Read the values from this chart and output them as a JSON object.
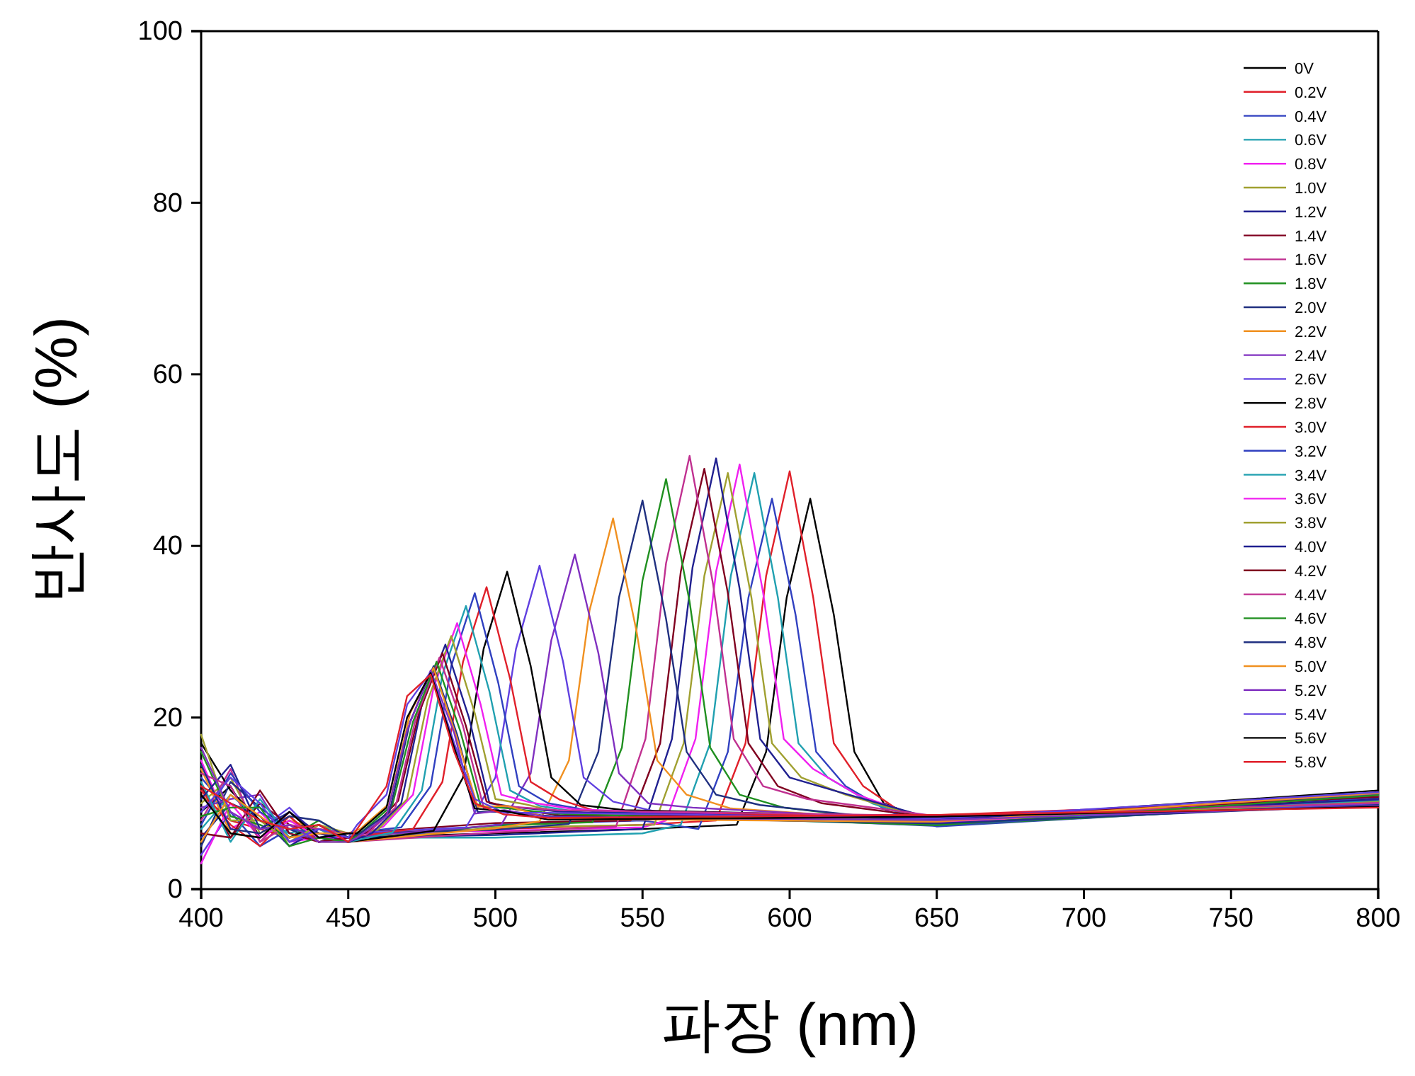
{
  "chart_data": {
    "type": "line",
    "xlabel": "파장 (nm)",
    "ylabel": "반사도 (%)",
    "xlim": [
      400,
      800
    ],
    "ylim": [
      0,
      100
    ],
    "xticks": [
      400,
      450,
      500,
      550,
      600,
      650,
      700,
      750,
      800
    ],
    "yticks": [
      0,
      20,
      40,
      60,
      80,
      100
    ],
    "grid": false,
    "legend": "top right",
    "marker": "none",
    "line_style": "solid",
    "series": [
      {
        "name": "0V",
        "color": "#000000",
        "x": [
          400,
          410,
          420,
          430,
          440,
          450,
          500,
          550,
          582,
          592,
          599,
          607,
          615,
          622,
          632,
          647,
          800
        ],
        "values": [
          9,
          12,
          6,
          8,
          6.5,
          6,
          6.5,
          7,
          7.5,
          16,
          34,
          45.5,
          32,
          16,
          10,
          8,
          11.5
        ]
      },
      {
        "name": "0.2V",
        "color": "#e0202a",
        "x": [
          400,
          410,
          420,
          430,
          440,
          450,
          500,
          550,
          575,
          585,
          592,
          600,
          608,
          615,
          625,
          640,
          800
        ],
        "values": [
          11,
          8,
          7,
          6,
          7,
          6.5,
          7,
          7.5,
          8,
          17,
          36.5,
          48.7,
          34,
          17,
          12,
          8.5,
          10.5
        ]
      },
      {
        "name": "0.4V",
        "color": "#3040c0",
        "x": [
          400,
          410,
          420,
          430,
          440,
          450,
          500,
          550,
          569,
          579,
          586,
          594,
          602,
          609,
          619,
          634,
          650,
          800
        ],
        "values": [
          13,
          9,
          5,
          7,
          6,
          5.5,
          7.5,
          8,
          7,
          16,
          34,
          45.5,
          32,
          16,
          12,
          9,
          7.3,
          10.2
        ]
      },
      {
        "name": "0.6V",
        "color": "#20a0b0",
        "x": [
          400,
          410,
          420,
          430,
          440,
          450,
          500,
          550,
          563,
          573,
          580,
          588,
          596,
          603,
          613,
          628,
          650,
          800
        ],
        "values": [
          7,
          11,
          8,
          6.5,
          7.5,
          6,
          6,
          6.5,
          7.5,
          17,
          36.5,
          48.5,
          34,
          17,
          13,
          10,
          7.5,
          10.8
        ]
      },
      {
        "name": "0.8V",
        "color": "#f020f0",
        "x": [
          400,
          410,
          420,
          430,
          440,
          450,
          500,
          550,
          558,
          568,
          575,
          583,
          591,
          598,
          608,
          623,
          650,
          800
        ],
        "values": [
          15,
          7,
          9,
          5.5,
          6,
          6.5,
          6.8,
          7.2,
          8,
          17.5,
          37,
          49.5,
          34.5,
          17.5,
          14,
          11,
          7.7,
          10
        ]
      },
      {
        "name": "1.0V",
        "color": "#a0a030",
        "x": [
          400,
          410,
          420,
          430,
          440,
          450,
          500,
          554,
          564,
          571,
          579,
          587,
          594,
          604,
          619,
          650,
          800
        ],
        "values": [
          10,
          13,
          6.5,
          8.5,
          5.5,
          5.5,
          7.2,
          7.5,
          17,
          36.5,
          48.5,
          34,
          17,
          13,
          11,
          7.9,
          10.6
        ]
      },
      {
        "name": "1.2V",
        "color": "#202090",
        "x": [
          400,
          410,
          420,
          430,
          440,
          450,
          500,
          550,
          560,
          567,
          575,
          583,
          590,
          600,
          615,
          650,
          800
        ],
        "values": [
          6,
          10,
          8.5,
          5,
          7,
          6,
          6.3,
          7,
          17.5,
          37.5,
          50.2,
          35,
          17.5,
          13,
          11.5,
          8.1,
          11
        ]
      },
      {
        "name": "1.4V",
        "color": "#800020",
        "x": [
          400,
          410,
          420,
          430,
          440,
          450,
          500,
          546,
          556,
          563,
          571,
          579,
          586,
          596,
          611,
          650,
          800
        ],
        "values": [
          12,
          6,
          10,
          7.5,
          6.5,
          6.5,
          7.7,
          8,
          17,
          37,
          49,
          34.5,
          17,
          12,
          10,
          8.3,
          10.3
        ]
      },
      {
        "name": "1.6V",
        "color": "#c03090",
        "x": [
          400,
          410,
          420,
          430,
          440,
          450,
          500,
          541,
          551,
          558,
          566,
          574,
          581,
          591,
          606,
          650,
          800
        ],
        "values": [
          8,
          14,
          5.5,
          9,
          6,
          5.5,
          6.6,
          7.3,
          17.5,
          38,
          50.5,
          35.5,
          17.5,
          12,
          10.5,
          8.5,
          10.7
        ]
      },
      {
        "name": "1.8V",
        "color": "#209020",
        "x": [
          400,
          410,
          420,
          430,
          440,
          450,
          500,
          533,
          543,
          550,
          558,
          566,
          573,
          583,
          598,
          650,
          800
        ],
        "values": [
          16,
          8.5,
          7.5,
          6,
          8,
          6,
          7.4,
          7.8,
          16.5,
          36,
          47.8,
          33.5,
          16.5,
          11,
          9.5,
          7.4,
          10.1
        ]
      },
      {
        "name": "2.0V",
        "color": "#203080",
        "x": [
          400,
          410,
          420,
          430,
          440,
          450,
          500,
          525,
          535,
          542,
          550,
          558,
          565,
          575,
          590,
          650,
          800
        ],
        "values": [
          5,
          12.5,
          9.5,
          7,
          5.5,
          6.5,
          6.9,
          7.6,
          16,
          34,
          45.3,
          31.5,
          16,
          11,
          9.8,
          7.6,
          10.9
        ]
      },
      {
        "name": "2.2V",
        "color": "#f09020",
        "x": [
          400,
          410,
          420,
          430,
          440,
          450,
          500,
          515,
          525,
          532,
          540,
          548,
          555,
          565,
          580,
          650,
          800
        ],
        "values": [
          14,
          6.5,
          6,
          8,
          7,
          5.5,
          7.1,
          7.9,
          15,
          32.5,
          43.2,
          30,
          15,
          11,
          9.4,
          7.8,
          10.4
        ]
      },
      {
        "name": "2.4V",
        "color": "#8030c0",
        "x": [
          400,
          410,
          420,
          430,
          440,
          450,
          502,
          512,
          519,
          527,
          535,
          542,
          552,
          567,
          650,
          800
        ],
        "values": [
          9.5,
          10.5,
          11,
          5.5,
          6.5,
          6,
          7.5,
          13.5,
          29,
          39,
          27.5,
          13.5,
          10,
          9.5,
          8,
          11.1
        ]
      },
      {
        "name": "2.6V",
        "color": "#6040e0",
        "x": [
          400,
          410,
          420,
          430,
          440,
          450,
          490,
          500,
          507,
          515,
          523,
          530,
          540,
          555,
          650,
          800
        ],
        "values": [
          4,
          9,
          7,
          9.5,
          6,
          6.5,
          7.2,
          13,
          28,
          37.7,
          26.5,
          13,
          10.2,
          9,
          8.2,
          9.9
        ]
      },
      {
        "name": "2.8V",
        "color": "#000000",
        "x": [
          400,
          410,
          420,
          430,
          440,
          450,
          479,
          489,
          496,
          504,
          512,
          519,
          529,
          544,
          650,
          800
        ],
        "values": [
          17,
          11.5,
          8,
          6,
          7.5,
          5.5,
          6.8,
          13,
          28,
          37,
          26,
          13,
          9.8,
          9.2,
          8.4,
          10.55
        ]
      },
      {
        "name": "3.0V",
        "color": "#e0202a",
        "x": [
          400,
          410,
          420,
          430,
          440,
          450,
          472,
          482,
          489,
          497,
          505,
          512,
          522,
          537,
          650,
          800
        ],
        "values": [
          11.5,
          7.5,
          5,
          8.5,
          5.5,
          6,
          7,
          12.5,
          26.5,
          35.2,
          24.5,
          12.5,
          10.4,
          8.8,
          8.6,
          10.25
        ]
      },
      {
        "name": "3.2V",
        "color": "#3040c0",
        "x": [
          400,
          410,
          420,
          430,
          440,
          450,
          468,
          478,
          485,
          493,
          501,
          508,
          518,
          533,
          650,
          800
        ],
        "values": [
          7.5,
          13.5,
          9,
          7,
          6.5,
          6.5,
          7.2,
          12,
          26,
          34.5,
          24,
          12,
          10,
          9.1,
          7.35,
          10.65
        ]
      },
      {
        "name": "3.4V",
        "color": "#20a0b0",
        "x": [
          400,
          410,
          420,
          430,
          440,
          450,
          465,
          475,
          482,
          490,
          498,
          505,
          515,
          530,
          650,
          800
        ],
        "values": [
          12.5,
          5.5,
          10.5,
          6,
          7,
          5.5,
          6.6,
          11.5,
          25,
          33,
          23,
          11.5,
          9.7,
          8.9,
          7.55,
          10.35
        ]
      },
      {
        "name": "3.6V",
        "color": "#f020f0",
        "x": [
          400,
          410,
          420,
          430,
          440,
          450,
          462,
          472,
          479,
          487,
          495,
          502,
          512,
          527,
          650,
          800
        ],
        "values": [
          3,
          10,
          6,
          8,
          6,
          6,
          7.3,
          11,
          23.5,
          31,
          21.5,
          11,
          10.1,
          9.3,
          7.75,
          10.85
        ]
      },
      {
        "name": "3.8V",
        "color": "#a0a030",
        "x": [
          400,
          410,
          420,
          430,
          440,
          450,
          460,
          470,
          477,
          485,
          493,
          500,
          510,
          525,
          650,
          800
        ],
        "values": [
          18,
          8,
          8,
          5.5,
          7.5,
          6.5,
          6.9,
          10.5,
          22,
          29.5,
          20.5,
          10.5,
          9.9,
          8.7,
          7.95,
          10.15
        ]
      },
      {
        "name": "4.0V",
        "color": "#202090",
        "x": [
          400,
          410,
          420,
          430,
          440,
          450,
          458,
          468,
          475,
          483,
          491,
          498,
          508,
          523,
          650,
          800
        ],
        "values": [
          10.5,
          14.5,
          7,
          9,
          6.5,
          5.5,
          6.5,
          10,
          21.5,
          28.5,
          20,
          10,
          9.5,
          9,
          8.15,
          10.45
        ]
      },
      {
        "name": "4.2V",
        "color": "#800020",
        "x": [
          400,
          410,
          420,
          430,
          440,
          450,
          457,
          467,
          474,
          482,
          490,
          497,
          507,
          522,
          650,
          800
        ],
        "values": [
          6.5,
          6,
          11.5,
          6.5,
          5.5,
          6,
          6.7,
          10.3,
          20.5,
          27.5,
          19,
          10.2,
          9.3,
          8.6,
          8.35,
          10.75
        ]
      },
      {
        "name": "4.4V",
        "color": "#c03090",
        "x": [
          400,
          410,
          420,
          430,
          440,
          450,
          456,
          466,
          473,
          481,
          489,
          496,
          506,
          521,
          650,
          800
        ],
        "values": [
          13.5,
          12,
          5.5,
          7.5,
          7,
          6.5,
          6.3,
          9.5,
          20,
          27,
          19,
          9.5,
          9.6,
          9.2,
          8.55,
          10.05
        ]
      },
      {
        "name": "4.6V",
        "color": "#209020",
        "x": [
          400,
          410,
          420,
          430,
          440,
          450,
          455,
          465,
          472,
          480,
          488,
          495,
          505,
          520,
          650,
          800
        ],
        "values": [
          8.5,
          9.5,
          9.5,
          5,
          6,
          5.5,
          6.8,
          9.8,
          19.5,
          26.5,
          18.5,
          9.7,
          9.4,
          8.8,
          7.45,
          10.95
        ]
      },
      {
        "name": "4.8V",
        "color": "#203080",
        "x": [
          400,
          410,
          420,
          430,
          440,
          450,
          454,
          464,
          471,
          479,
          487,
          494,
          504,
          519,
          650,
          800
        ],
        "values": [
          14.5,
          7,
          6.5,
          8.5,
          8,
          6,
          6.5,
          9,
          19.5,
          26,
          18,
          9,
          9,
          8.5,
          7.65,
          9.8
        ]
      },
      {
        "name": "5.0V",
        "color": "#f09020",
        "x": [
          400,
          410,
          420,
          430,
          440,
          450,
          454,
          464,
          471,
          479,
          487,
          494,
          504,
          519,
          650,
          800
        ],
        "values": [
          5.5,
          11,
          8.5,
          6,
          6.5,
          6.5,
          7,
          10,
          20.5,
          25.8,
          17.5,
          9.6,
          9.7,
          8.2,
          7.85,
          11.2
        ]
      },
      {
        "name": "5.2V",
        "color": "#8030c0",
        "x": [
          400,
          410,
          420,
          430,
          440,
          450,
          453,
          463,
          470,
          478,
          486,
          493,
          503,
          518,
          650,
          800
        ],
        "values": [
          16.5,
          9,
          7,
          7.5,
          5.5,
          5.5,
          6,
          8.5,
          18.5,
          25.5,
          18.2,
          8.8,
          9.2,
          8.4,
          8.05,
          9.7
        ]
      },
      {
        "name": "5.4V",
        "color": "#6040e0",
        "x": [
          400,
          410,
          420,
          430,
          440,
          450,
          453,
          463,
          470,
          478,
          486,
          493,
          503,
          518,
          650,
          800
        ],
        "values": [
          9,
          13,
          10,
          5.5,
          7,
          6,
          7.5,
          11,
          21.5,
          25.3,
          17,
          10.5,
          8.9,
          8.9,
          8.25,
          11.3
        ]
      },
      {
        "name": "5.6V",
        "color": "#000000",
        "x": [
          400,
          410,
          420,
          430,
          440,
          450,
          453,
          463,
          470,
          478,
          486,
          493,
          503,
          518,
          650,
          800
        ],
        "values": [
          11,
          6.5,
          6,
          9,
          6,
          6.5,
          6.5,
          9.5,
          20,
          25.2,
          16.5,
          9.4,
          9.1,
          8.1,
          8.45,
          9.6
        ]
      },
      {
        "name": "5.8V",
        "color": "#e0202a",
        "x": [
          400,
          410,
          420,
          430,
          440,
          450,
          453,
          463,
          470,
          478,
          486,
          493,
          503,
          518,
          650,
          800
        ],
        "values": [
          12,
          10,
          8,
          7,
          7.5,
          5.5,
          7,
          12,
          22.5,
          25,
          16,
          10,
          8.7,
          8.3,
          8.65,
          9.5
        ]
      }
    ]
  }
}
